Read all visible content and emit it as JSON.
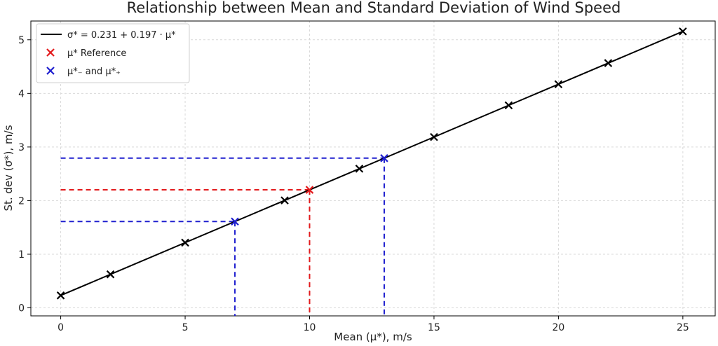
{
  "chart_data": {
    "type": "line",
    "title": "Relationship between Mean and Standard Deviation of Wind Speed",
    "xlabel": "Mean (μ*), m/s",
    "ylabel": "St. dev (σ*), m/s",
    "xlim": [
      -1.2,
      26.3
    ],
    "ylim": [
      -0.15,
      5.35
    ],
    "xticks": [
      0,
      5,
      10,
      15,
      20,
      25
    ],
    "yticks": [
      0,
      1,
      2,
      3,
      4,
      5
    ],
    "grid": true,
    "legend_position": "top-left",
    "legend": [
      {
        "label": "σ* = 0.231 + 0.197 · μ*",
        "marker": "line",
        "color": "#000000"
      },
      {
        "label": "μ* Reference",
        "marker": "x",
        "color": "#e31a1c"
      },
      {
        "label": "μ*₋ and μ*₊",
        "marker": "x",
        "color": "#1f1fcf"
      }
    ],
    "line": {
      "intercept": 0.231,
      "slope": 0.197,
      "x_range": [
        0,
        25
      ],
      "color": "#000000"
    },
    "points": {
      "x": [
        0,
        2,
        5,
        9,
        12,
        15,
        18,
        20,
        22,
        25
      ],
      "y": [
        0.231,
        0.625,
        1.216,
        2.004,
        2.595,
        3.186,
        3.777,
        4.171,
        4.565,
        5.156
      ],
      "color": "#000000"
    },
    "reference": {
      "x": 10,
      "y": 2.201,
      "color": "#e31a1c"
    },
    "bounds": {
      "x": [
        7,
        13
      ],
      "y": [
        1.61,
        2.792
      ],
      "color": "#1f1fcf"
    }
  }
}
